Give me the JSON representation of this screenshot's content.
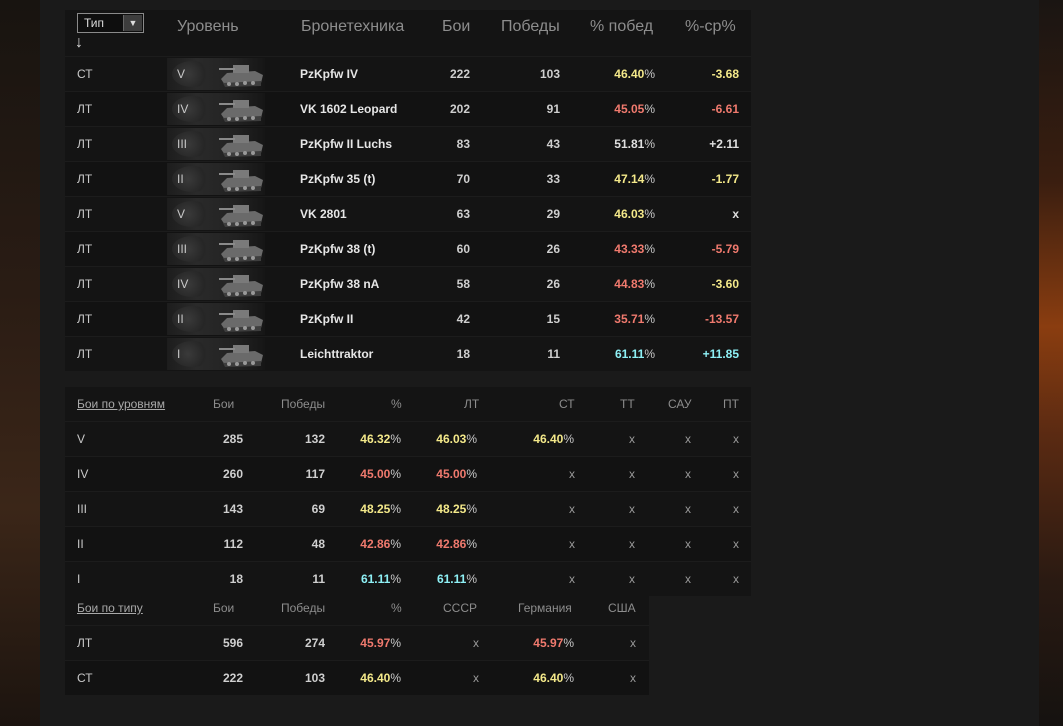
{
  "table": {
    "sort_select": {
      "value": "Тип"
    },
    "sort_arrow": "↓",
    "headers": {
      "type": "",
      "level": "Уровень",
      "vehicle": "Бронетехника",
      "battles": "Бои",
      "wins": "Победы",
      "win_pct": "% побед",
      "diff": "%-ср%"
    },
    "rows": [
      {
        "type": "СТ",
        "level": "V",
        "name": "PzKpfw IV",
        "battles": "222",
        "wins": "103",
        "pct": "46.40",
        "diff": "-3.68",
        "pct_color": "#f4e98a",
        "diff_color": "#f4e98a"
      },
      {
        "type": "ЛТ",
        "level": "IV",
        "name": "VK 1602 Leopard",
        "battles": "202",
        "wins": "91",
        "pct": "45.05",
        "diff": "-6.61",
        "pct_color": "#f07a6e",
        "diff_color": "#f07a6e"
      },
      {
        "type": "ЛТ",
        "level": "III",
        "name": "PzKpfw II Luchs",
        "battles": "83",
        "wins": "43",
        "pct": "51.81",
        "diff": "+2.11",
        "pct_color": "#e0e0e0",
        "diff_color": "#e0e0e0"
      },
      {
        "type": "ЛТ",
        "level": "II",
        "name": "PzKpfw 35 (t)",
        "battles": "70",
        "wins": "33",
        "pct": "47.14",
        "diff": "-1.77",
        "pct_color": "#f4e98a",
        "diff_color": "#f4e98a"
      },
      {
        "type": "ЛТ",
        "level": "V",
        "name": "VK 2801",
        "battles": "63",
        "wins": "29",
        "pct": "46.03",
        "diff": "x",
        "pct_color": "#f4e98a",
        "diff_color": "#e0e0e0"
      },
      {
        "type": "ЛТ",
        "level": "III",
        "name": "PzKpfw 38 (t)",
        "battles": "60",
        "wins": "26",
        "pct": "43.33",
        "diff": "-5.79",
        "pct_color": "#f07a6e",
        "diff_color": "#f07a6e"
      },
      {
        "type": "ЛТ",
        "level": "IV",
        "name": "PzKpfw 38 nA",
        "battles": "58",
        "wins": "26",
        "pct": "44.83",
        "diff": "-3.60",
        "pct_color": "#f07a6e",
        "diff_color": "#f4e98a"
      },
      {
        "type": "ЛТ",
        "level": "II",
        "name": "PzKpfw II",
        "battles": "42",
        "wins": "15",
        "pct": "35.71",
        "diff": "-13.57",
        "pct_color": "#f07a6e",
        "diff_color": "#f07a6e"
      },
      {
        "type": "ЛТ",
        "level": "I",
        "name": "Leichttraktor",
        "battles": "18",
        "wins": "11",
        "pct": "61.11",
        "diff": "+11.85",
        "pct_color": "#8ef0f5",
        "diff_color": "#8ef0f5"
      }
    ]
  },
  "by_level": {
    "headers": {
      "title": "Бои по уровням",
      "battles": "Бои",
      "wins": "Победы",
      "pct": "%",
      "lt": "ЛТ",
      "st": "СТ",
      "tt": "ТТ",
      "sau": "САУ",
      "pt": "ПТ"
    },
    "rows": [
      {
        "level": "V",
        "battles": "285",
        "wins": "132",
        "pct": "46.32",
        "lt": "46.03",
        "st": "46.40",
        "tt": "x",
        "sau": "x",
        "pt": "x",
        "pct_color": "#f4e98a",
        "lt_color": "#f4e98a",
        "st_color": "#f4e98a"
      },
      {
        "level": "IV",
        "battles": "260",
        "wins": "117",
        "pct": "45.00",
        "lt": "45.00",
        "st": "x",
        "tt": "x",
        "sau": "x",
        "pt": "x",
        "pct_color": "#f07a6e",
        "lt_color": "#f07a6e",
        "st_color": ""
      },
      {
        "level": "III",
        "battles": "143",
        "wins": "69",
        "pct": "48.25",
        "lt": "48.25",
        "st": "x",
        "tt": "x",
        "sau": "x",
        "pt": "x",
        "pct_color": "#f4e98a",
        "lt_color": "#f4e98a",
        "st_color": ""
      },
      {
        "level": "II",
        "battles": "112",
        "wins": "48",
        "pct": "42.86",
        "lt": "42.86",
        "st": "x",
        "tt": "x",
        "sau": "x",
        "pt": "x",
        "pct_color": "#f07a6e",
        "lt_color": "#f07a6e",
        "st_color": ""
      },
      {
        "level": "I",
        "battles": "18",
        "wins": "11",
        "pct": "61.11",
        "lt": "61.11",
        "st": "x",
        "tt": "x",
        "sau": "x",
        "pt": "x",
        "pct_color": "#8ef0f5",
        "lt_color": "#8ef0f5",
        "st_color": ""
      }
    ]
  },
  "by_type": {
    "headers": {
      "title": "Бои по типу",
      "battles": "Бои",
      "wins": "Победы",
      "pct": "%",
      "ussr": "СССР",
      "germany": "Германия",
      "usa": "США"
    },
    "rows": [
      {
        "type": "ЛТ",
        "battles": "596",
        "wins": "274",
        "pct": "45.97",
        "ussr": "x",
        "germany": "45.97",
        "usa": "x",
        "pct_color": "#f07a6e",
        "germany_color": "#f07a6e"
      },
      {
        "type": "СТ",
        "battles": "222",
        "wins": "103",
        "pct": "46.40",
        "ussr": "x",
        "germany": "46.40",
        "usa": "x",
        "pct_color": "#f4e98a",
        "germany_color": "#f4e98a"
      }
    ]
  },
  "percent_sign": "%"
}
